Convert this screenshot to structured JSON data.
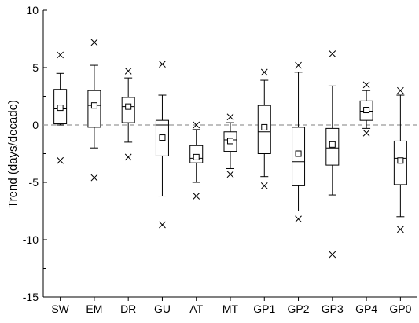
{
  "chart_data": {
    "type": "box",
    "title": "",
    "xlabel": "",
    "ylabel": "Trend (days/decade)",
    "ylim": [
      -15,
      10
    ],
    "yticks": [
      -15,
      -10,
      -5,
      0,
      5,
      10
    ],
    "yticks_minor": true,
    "grid": false,
    "reference_line": {
      "y": 0,
      "style": "dashed",
      "color": "#999999"
    },
    "categories": [
      "SW",
      "EM",
      "DR",
      "GU",
      "AT",
      "MT",
      "GP1",
      "GP2",
      "GP3",
      "GP4",
      "GP0"
    ],
    "boxes": [
      {
        "category": "SW",
        "min": -3.1,
        "whisker_low": 0.0,
        "q1": 0.1,
        "median": 1.4,
        "mean": 1.5,
        "q3": 3.1,
        "whisker_high": 4.5,
        "max": 6.1
      },
      {
        "category": "EM",
        "min": -4.6,
        "whisker_low": -2.0,
        "q1": -0.2,
        "median": 1.7,
        "mean": 1.7,
        "q3": 3.0,
        "whisker_high": 5.2,
        "max": 7.2
      },
      {
        "category": "DR",
        "min": -2.8,
        "whisker_low": -1.5,
        "q1": 0.2,
        "median": 1.6,
        "mean": 1.6,
        "q3": 2.4,
        "whisker_high": 4.1,
        "max": 4.7
      },
      {
        "category": "GU",
        "min": -8.7,
        "whisker_low": -6.2,
        "q1": -2.7,
        "median": 0.0,
        "mean": -1.1,
        "q3": 0.4,
        "whisker_high": 2.6,
        "max": 5.3
      },
      {
        "category": "AT",
        "min": -6.2,
        "whisker_low": -5.0,
        "q1": -3.3,
        "median": -2.9,
        "mean": -2.8,
        "q3": -1.8,
        "whisker_high": -0.4,
        "max": 0.0
      },
      {
        "category": "MT",
        "min": -4.3,
        "whisker_low": -3.8,
        "q1": -2.3,
        "median": -1.3,
        "mean": -1.4,
        "q3": -0.6,
        "whisker_high": 0.2,
        "max": 0.7
      },
      {
        "category": "GP1",
        "min": -5.3,
        "whisker_low": -4.5,
        "q1": -2.5,
        "median": -0.6,
        "mean": -0.2,
        "q3": 1.7,
        "whisker_high": 3.9,
        "max": 4.6
      },
      {
        "category": "GP2",
        "min": -8.2,
        "whisker_low": -7.5,
        "q1": -5.3,
        "median": -3.2,
        "mean": -2.5,
        "q3": -0.2,
        "whisker_high": 4.6,
        "max": 5.2
      },
      {
        "category": "GP3",
        "min": -11.3,
        "whisker_low": -6.1,
        "q1": -3.5,
        "median": -2.0,
        "mean": -1.7,
        "q3": -0.3,
        "whisker_high": 3.4,
        "max": 6.2
      },
      {
        "category": "GP4",
        "min": -0.7,
        "whisker_low": -0.3,
        "q1": 0.4,
        "median": 1.2,
        "mean": 1.3,
        "q3": 2.1,
        "whisker_high": 3.0,
        "max": 3.5
      },
      {
        "category": "GP0",
        "min": -9.1,
        "whisker_low": -8.0,
        "q1": -5.2,
        "median": -2.9,
        "mean": -3.1,
        "q3": -1.4,
        "whisker_high": 2.6,
        "max": 3.0
      }
    ],
    "colors": {
      "box": "#000000",
      "reference_line": "#999999",
      "axis": "#000000"
    }
  }
}
